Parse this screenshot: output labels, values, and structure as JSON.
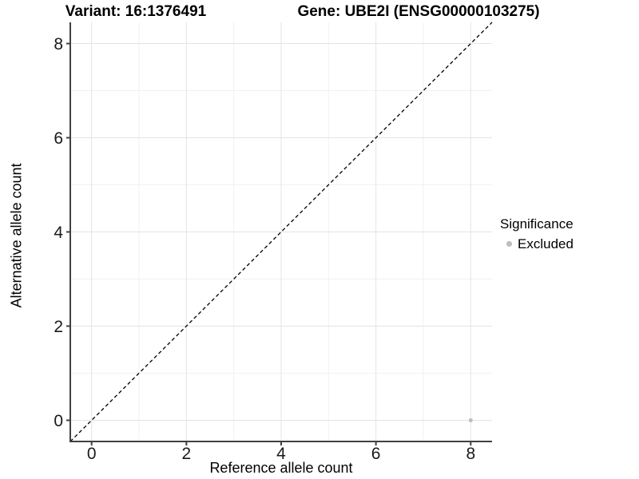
{
  "chart_data": {
    "type": "scatter",
    "titles": {
      "variant": "Variant: 16:1376491",
      "gene": "Gene: UBE2I (ENSG00000103275)"
    },
    "xlabel": "Reference allele count",
    "ylabel": "Alternative allele count",
    "xlim": [
      -0.45,
      8.45
    ],
    "ylim": [
      -0.45,
      8.45
    ],
    "x_major_ticks": [
      0,
      2,
      4,
      6,
      8
    ],
    "x_minor_ticks": [
      1,
      3,
      5,
      7
    ],
    "y_major_ticks": [
      0,
      2,
      4,
      6,
      8
    ],
    "y_minor_ticks": [
      1,
      3,
      5,
      7
    ],
    "grid": true,
    "legend_position": "right",
    "series": [
      {
        "name": "Excluded",
        "color": "#bdbdbd",
        "point_radius": 2.5,
        "points": [
          {
            "x": 8,
            "y": 0
          }
        ]
      }
    ],
    "reference_line": {
      "kind": "identity",
      "style": "dashed",
      "color": "#000000"
    },
    "legend": {
      "title": "Significance",
      "items": [
        {
          "label": "Excluded",
          "color": "#bdbdbd"
        }
      ]
    },
    "colors": {
      "background": "#ffffff",
      "grid_major": "#e4e4e4",
      "grid_minor": "#f1f1f1",
      "axis_line": "#404040",
      "tick_label": "#1a1a1a",
      "title_text": "#000000"
    }
  }
}
